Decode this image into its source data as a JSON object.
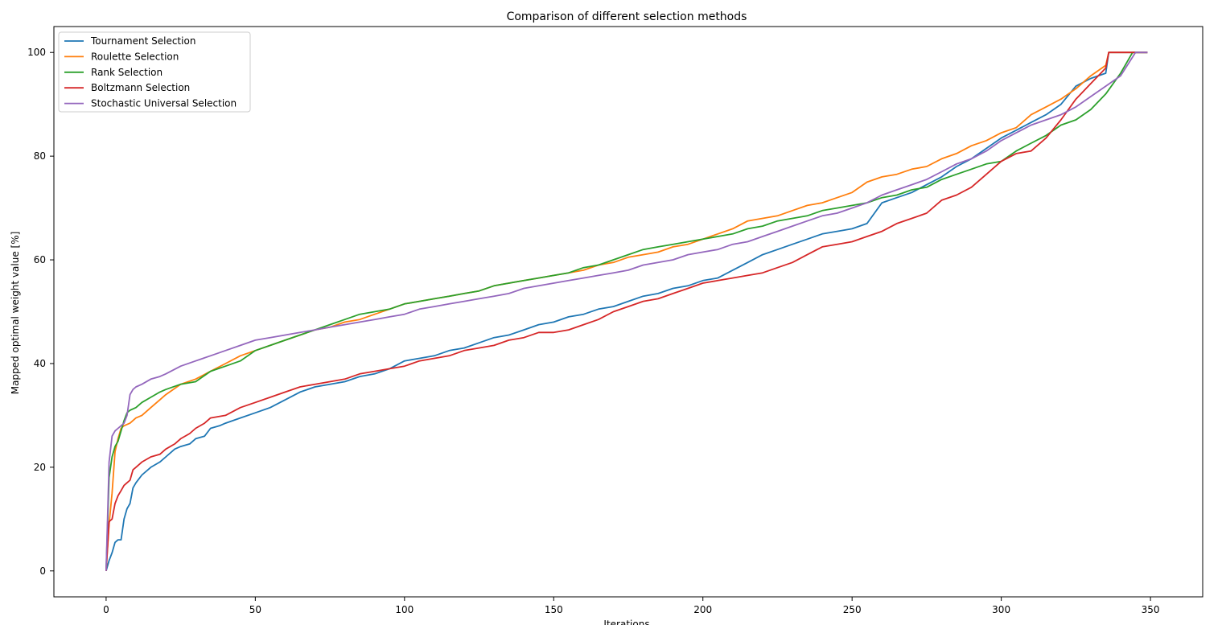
{
  "chart_data": {
    "type": "line",
    "title": "Comparison of different selection methods",
    "xlabel": "Iterations",
    "ylabel": "Mapped optimal weight value [%]",
    "xlim": [
      -17.5,
      367.5
    ],
    "ylim": [
      -5,
      105
    ],
    "xticks": [
      0,
      50,
      100,
      150,
      200,
      250,
      300,
      350
    ],
    "yticks": [
      0,
      20,
      40,
      60,
      80,
      100
    ],
    "grid": false,
    "legend_position": "upper left",
    "series": [
      {
        "name": "Tournament Selection",
        "color": "#1f77b4",
        "x": [
          0,
          1,
          2,
          3,
          4,
          5,
          6,
          7,
          8,
          9,
          10,
          12,
          15,
          18,
          20,
          23,
          25,
          28,
          30,
          33,
          35,
          38,
          40,
          45,
          50,
          55,
          60,
          65,
          70,
          75,
          80,
          85,
          90,
          95,
          100,
          105,
          110,
          115,
          120,
          125,
          130,
          135,
          140,
          145,
          150,
          155,
          160,
          165,
          170,
          175,
          180,
          185,
          190,
          195,
          200,
          205,
          210,
          215,
          220,
          225,
          230,
          235,
          240,
          245,
          250,
          255,
          260,
          265,
          270,
          275,
          280,
          285,
          290,
          295,
          300,
          305,
          310,
          315,
          320,
          325,
          330,
          335,
          336,
          340,
          345,
          349
        ],
        "y": [
          0,
          2,
          3.5,
          5.5,
          6,
          6,
          10,
          12,
          13,
          16,
          17,
          18.5,
          20,
          21,
          22,
          23.5,
          24,
          24.5,
          25.5,
          26,
          27.5,
          28,
          28.5,
          29.5,
          30.5,
          31.5,
          33,
          34.5,
          35.5,
          36,
          36.5,
          37.5,
          38,
          39,
          40.5,
          41,
          41.5,
          42.5,
          43,
          44,
          45,
          45.5,
          46.5,
          47.5,
          48,
          49,
          49.5,
          50.5,
          51,
          52,
          53,
          53.5,
          54.5,
          55,
          56,
          56.5,
          58,
          59.5,
          61,
          62,
          63,
          64,
          65,
          65.5,
          66,
          67,
          71,
          72,
          73,
          74.5,
          76,
          78,
          79.5,
          81.5,
          83.5,
          85,
          86.5,
          88,
          90,
          93.5,
          95,
          96,
          100,
          100,
          100,
          100
        ]
      },
      {
        "name": "Roulette Selection",
        "color": "#ff7f0e",
        "x": [
          0,
          1,
          2,
          3,
          4,
          5,
          6,
          8,
          10,
          12,
          15,
          18,
          20,
          25,
          30,
          35,
          40,
          45,
          50,
          55,
          60,
          65,
          70,
          75,
          80,
          85,
          90,
          95,
          100,
          105,
          110,
          115,
          120,
          125,
          130,
          135,
          140,
          145,
          150,
          155,
          160,
          165,
          170,
          175,
          180,
          185,
          190,
          195,
          200,
          205,
          210,
          215,
          220,
          225,
          230,
          235,
          240,
          245,
          250,
          255,
          260,
          265,
          270,
          275,
          280,
          285,
          290,
          295,
          300,
          305,
          310,
          315,
          320,
          325,
          330,
          335,
          336,
          340,
          345,
          349
        ],
        "y": [
          0,
          9,
          15,
          23,
          25.5,
          27.5,
          28,
          28.5,
          29.5,
          30,
          31.5,
          33,
          34,
          36,
          37,
          38.5,
          40,
          41.5,
          42.5,
          43.5,
          44.5,
          45.5,
          46.5,
          47,
          48,
          48.5,
          49.5,
          50.5,
          51.5,
          52,
          52.5,
          53,
          53.5,
          54,
          55,
          55.5,
          56,
          56.5,
          57,
          57.5,
          58,
          59,
          59.5,
          60.5,
          61,
          61.5,
          62.5,
          63,
          64,
          65,
          66,
          67.5,
          68,
          68.5,
          69.5,
          70.5,
          71,
          72,
          73,
          75,
          76,
          76.5,
          77.5,
          78,
          79.5,
          80.5,
          82,
          83,
          84.5,
          85.5,
          88,
          89.5,
          91,
          93,
          95.5,
          97.5,
          100,
          100,
          100,
          100
        ]
      },
      {
        "name": "Rank Selection",
        "color": "#2ca02c",
        "x": [
          0,
          1,
          2,
          3,
          4,
          5,
          6,
          7,
          8,
          10,
          12,
          15,
          18,
          20,
          25,
          30,
          35,
          40,
          45,
          50,
          55,
          60,
          65,
          70,
          75,
          80,
          85,
          90,
          95,
          100,
          105,
          110,
          115,
          120,
          125,
          130,
          135,
          140,
          145,
          150,
          155,
          160,
          165,
          170,
          175,
          180,
          185,
          190,
          195,
          200,
          205,
          210,
          215,
          220,
          225,
          230,
          235,
          240,
          245,
          250,
          255,
          260,
          265,
          270,
          275,
          280,
          285,
          290,
          295,
          300,
          305,
          310,
          315,
          320,
          325,
          330,
          335,
          340,
          344,
          349
        ],
        "y": [
          0,
          18,
          22,
          24,
          25,
          27,
          29,
          30.5,
          31,
          31.5,
          32.5,
          33.5,
          34.5,
          35,
          36,
          36.5,
          38.5,
          39.5,
          40.5,
          42.5,
          43.5,
          44.5,
          45.5,
          46.5,
          47.5,
          48.5,
          49.5,
          50,
          50.5,
          51.5,
          52,
          52.5,
          53,
          53.5,
          54,
          55,
          55.5,
          56,
          56.5,
          57,
          57.5,
          58.5,
          59,
          60,
          61,
          62,
          62.5,
          63,
          63.5,
          64,
          64.5,
          65,
          66,
          66.5,
          67.5,
          68,
          68.5,
          69.5,
          70,
          70.5,
          71,
          72,
          72.5,
          73.5,
          74,
          75.5,
          76.5,
          77.5,
          78.5,
          79,
          81,
          82.5,
          84,
          86,
          87,
          89,
          92,
          96,
          100,
          100
        ]
      },
      {
        "name": "Boltzmann Selection",
        "color": "#d62728",
        "x": [
          0,
          1,
          2,
          3,
          4,
          5,
          6,
          7,
          8,
          9,
          10,
          12,
          15,
          18,
          20,
          23,
          25,
          28,
          30,
          33,
          35,
          40,
          45,
          50,
          55,
          60,
          65,
          70,
          75,
          80,
          85,
          90,
          95,
          100,
          105,
          110,
          115,
          120,
          125,
          130,
          135,
          140,
          145,
          150,
          155,
          160,
          165,
          170,
          175,
          180,
          185,
          190,
          195,
          200,
          205,
          210,
          215,
          220,
          225,
          230,
          235,
          240,
          245,
          250,
          255,
          260,
          265,
          270,
          275,
          280,
          285,
          290,
          295,
          300,
          305,
          310,
          315,
          320,
          325,
          330,
          335,
          336,
          340,
          345,
          349
        ],
        "y": [
          0,
          9.5,
          10,
          13,
          14.5,
          15.5,
          16.5,
          17,
          17.5,
          19.5,
          20,
          21,
          22,
          22.5,
          23.5,
          24.5,
          25.5,
          26.5,
          27.5,
          28.5,
          29.5,
          30,
          31.5,
          32.5,
          33.5,
          34.5,
          35.5,
          36,
          36.5,
          37,
          38,
          38.5,
          39,
          39.5,
          40.5,
          41,
          41.5,
          42.5,
          43,
          43.5,
          44.5,
          45,
          46,
          46,
          46.5,
          47.5,
          48.5,
          50,
          51,
          52,
          52.5,
          53.5,
          54.5,
          55.5,
          56,
          56.5,
          57,
          57.5,
          58.5,
          59.5,
          61,
          62.5,
          63,
          63.5,
          64.5,
          65.5,
          67,
          68,
          69,
          71.5,
          72.5,
          74,
          76.5,
          79,
          80.5,
          81,
          83.5,
          87,
          91,
          94,
          97,
          100,
          100,
          100,
          100
        ]
      },
      {
        "name": "Stochastic Universal Selection",
        "color": "#9467bd",
        "x": [
          0,
          1,
          2,
          3,
          4,
          5,
          6,
          7,
          8,
          9,
          10,
          12,
          15,
          18,
          20,
          25,
          30,
          35,
          40,
          45,
          50,
          55,
          60,
          65,
          70,
          75,
          80,
          85,
          90,
          95,
          100,
          105,
          110,
          115,
          120,
          125,
          130,
          135,
          140,
          145,
          150,
          155,
          160,
          165,
          170,
          175,
          180,
          185,
          190,
          195,
          200,
          205,
          210,
          215,
          220,
          225,
          230,
          235,
          240,
          245,
          250,
          255,
          260,
          265,
          270,
          275,
          280,
          285,
          290,
          295,
          300,
          305,
          310,
          315,
          320,
          325,
          330,
          335,
          340,
          345,
          349
        ],
        "y": [
          0,
          21,
          26,
          27,
          27.5,
          28,
          28.5,
          30,
          34,
          35,
          35.5,
          36,
          37,
          37.5,
          38,
          39.5,
          40.5,
          41.5,
          42.5,
          43.5,
          44.5,
          45,
          45.5,
          46,
          46.5,
          47,
          47.5,
          48,
          48.5,
          49,
          49.5,
          50.5,
          51,
          51.5,
          52,
          52.5,
          53,
          53.5,
          54.5,
          55,
          55.5,
          56,
          56.5,
          57,
          57.5,
          58,
          59,
          59.5,
          60,
          61,
          61.5,
          62,
          63,
          63.5,
          64.5,
          65.5,
          66.5,
          67.5,
          68.5,
          69,
          70,
          71,
          72.5,
          73.5,
          74.5,
          75.5,
          77,
          78.5,
          79.5,
          81,
          83,
          84.5,
          86,
          87,
          88,
          89.5,
          91.5,
          93.5,
          95.5,
          100,
          100
        ]
      }
    ]
  }
}
